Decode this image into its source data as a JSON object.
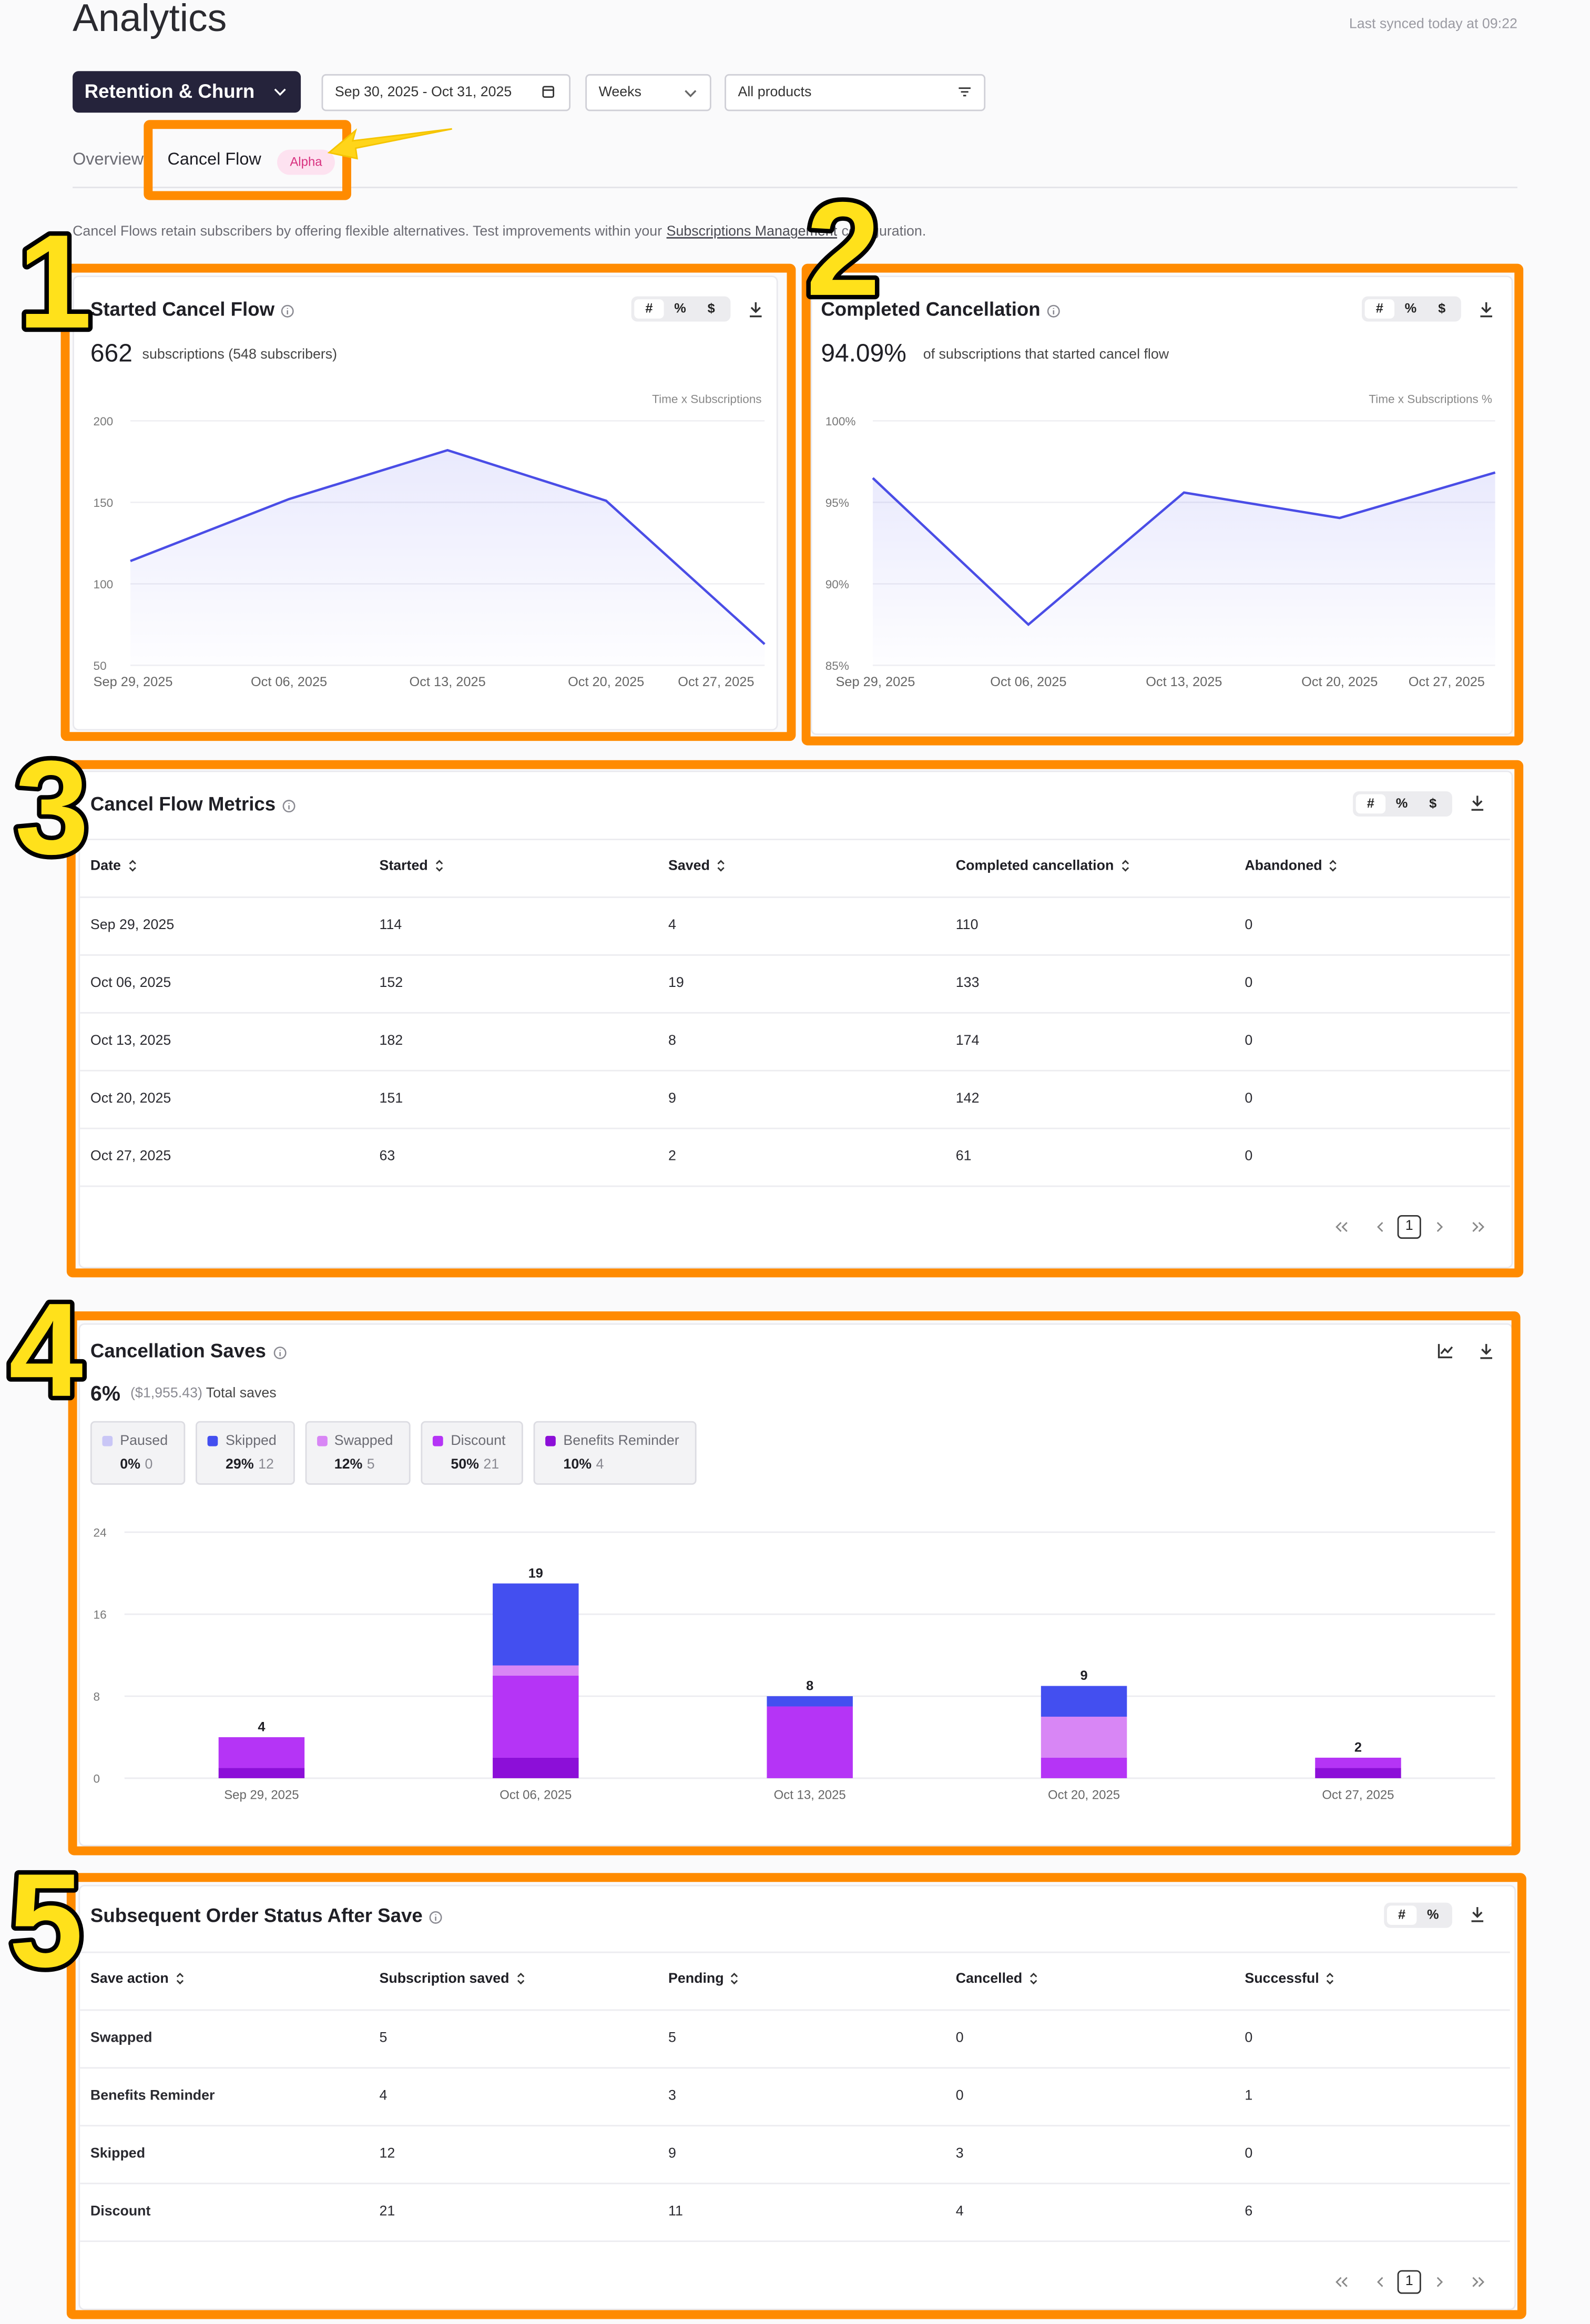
{
  "header": {
    "title": "Analytics",
    "sync_status": "Last synced today at 09:22"
  },
  "filters": {
    "report": "Retention & Churn",
    "date_range": "Sep 30, 2025 - Oct 31, 2025",
    "granularity": "Weeks",
    "products": "All products"
  },
  "tabs": {
    "items": [
      "Overview",
      "Cancel Flow"
    ],
    "badge": "Alpha"
  },
  "description": {
    "text": "Cancel Flows retain subscribers by offering flexible alternatives. Test improvements within your",
    "link": "Subscriptions Management",
    "suffix": "configuration."
  },
  "annotations": [
    "1",
    "2",
    "3",
    "4",
    "5"
  ],
  "started_card": {
    "title": "Started Cancel Flow",
    "toggles": [
      "#",
      "%",
      "$"
    ],
    "total": 662,
    "total_note": "subscriptions (548 subscribers)",
    "chart": {
      "type": "line",
      "axis_label": "Time x Subscriptions",
      "categories": [
        "Sep 29, 2025",
        "Oct 06, 2025",
        "Oct 13, 2025",
        "Oct 20, 2025",
        "Oct 27, 2025"
      ],
      "values": [
        114,
        152,
        182,
        151,
        63
      ],
      "color": "#4a4de6",
      "ylim": [
        50,
        200
      ],
      "yticks": [
        50,
        100,
        150,
        200
      ],
      "grid": true
    }
  },
  "completed_card": {
    "title": "Completed Cancellation",
    "toggles": [
      "#",
      "%",
      "$"
    ],
    "rate": "94.09%",
    "rate_note": "of subscriptions that started cancel flow",
    "chart": {
      "type": "line",
      "axis_label": "Time x Subscriptions %",
      "categories": [
        "Sep 29, 2025",
        "Oct 06, 2025",
        "Oct 13, 2025",
        "Oct 20, 2025",
        "Oct 27, 2025"
      ],
      "values": [
        96.49,
        87.5,
        95.6,
        94.04,
        96.83
      ],
      "color": "#4a4de6",
      "ylim": [
        85,
        100
      ],
      "yticks": [
        {
          "value": 85,
          "label": "85%"
        },
        {
          "value": 90,
          "label": "90%"
        },
        {
          "value": 95,
          "label": "95%"
        },
        {
          "value": 100,
          "label": "100%"
        }
      ],
      "grid": true
    }
  },
  "metrics_table": {
    "title": "Cancel Flow Metrics",
    "toggles": [
      "#",
      "%",
      "$"
    ],
    "columns": [
      "Date",
      "Started",
      "Saved",
      "Completed cancellation",
      "Abandoned"
    ],
    "rows": [
      [
        "Sep 29, 2025",
        114,
        4,
        110,
        0
      ],
      [
        "Oct 06, 2025",
        152,
        19,
        133,
        0
      ],
      [
        "Oct 13, 2025",
        182,
        8,
        174,
        0
      ],
      [
        "Oct 20, 2025",
        151,
        9,
        142,
        0
      ],
      [
        "Oct 27, 2025",
        63,
        2,
        61,
        0
      ]
    ],
    "page": 1
  },
  "saves_card": {
    "title": "Cancellation Saves",
    "rate": "6%",
    "amount": "($1,955.43)",
    "amount_note": "Total saves",
    "chart": {
      "type": "bar",
      "stacked": true,
      "categories": [
        "Sep 29, 2025",
        "Oct 06, 2025",
        "Oct 13, 2025",
        "Oct 20, 2025",
        "Oct 27, 2025"
      ],
      "series": [
        {
          "name": "Paused",
          "share": "0%",
          "count": 0,
          "color": "#c9c6f6",
          "values": [
            0,
            0,
            0,
            0,
            0
          ]
        },
        {
          "name": "Skipped",
          "share": "29%",
          "count": 12,
          "color": "#434ff0",
          "values": [
            0,
            8,
            1,
            3,
            0
          ]
        },
        {
          "name": "Swapped",
          "share": "12%",
          "count": 5,
          "color": "#d886f5",
          "values": [
            0,
            1,
            0,
            4,
            0
          ]
        },
        {
          "name": "Discount",
          "share": "50%",
          "count": 21,
          "color": "#b534f6",
          "values": [
            3,
            8,
            7,
            2,
            1
          ]
        },
        {
          "name": "Benefits Reminder",
          "share": "10%",
          "count": 4,
          "color": "#8c0fd8",
          "values": [
            1,
            2,
            0,
            0,
            1
          ]
        }
      ],
      "totals": [
        4,
        19,
        8,
        9,
        2
      ],
      "ylim": [
        0,
        24
      ],
      "yticks": [
        0,
        8,
        16,
        24
      ],
      "grid": true
    }
  },
  "order_table": {
    "title": "Subsequent Order Status After Save",
    "toggles": [
      "#",
      "%"
    ],
    "columns": [
      "Save action",
      "Subscription saved",
      "Pending",
      "Cancelled",
      "Successful"
    ],
    "rows": [
      [
        "Swapped",
        5,
        5,
        0,
        0
      ],
      [
        "Benefits Reminder",
        4,
        3,
        0,
        1
      ],
      [
        "Skipped",
        12,
        9,
        3,
        0
      ],
      [
        "Discount",
        21,
        11,
        4,
        6
      ]
    ],
    "page": 1
  }
}
